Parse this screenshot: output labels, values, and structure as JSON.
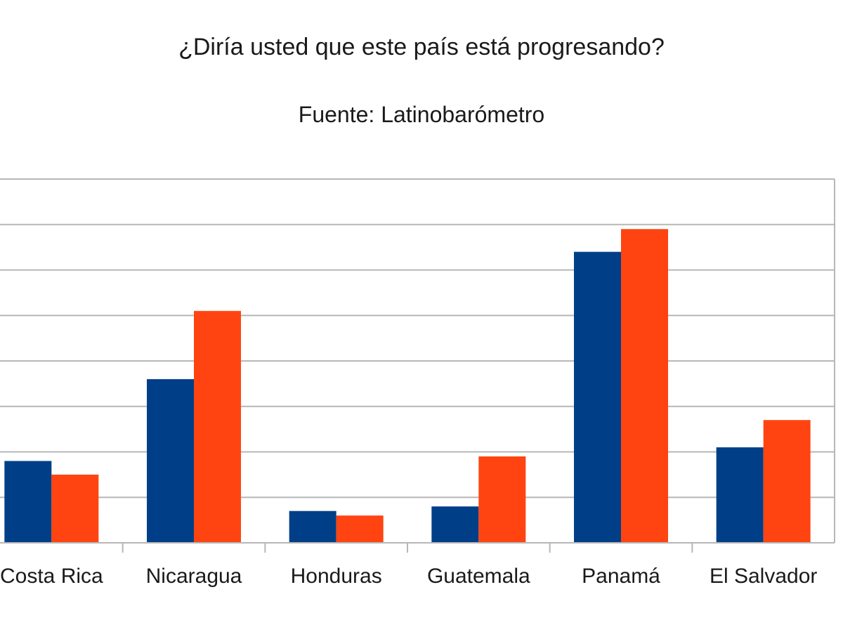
{
  "chart_data": {
    "type": "bar",
    "title": "¿Diría usted que este país está progresando?",
    "subtitle": "Fuente: Latinobarómetro",
    "categories": [
      "Costa Rica",
      "Nicaragua",
      "Honduras",
      "Guatemala",
      "Panamá",
      "El Salvador"
    ],
    "series": [
      {
        "values": [
          18,
          36,
          7,
          8,
          64,
          21
        ]
      },
      {
        "values": [
          15,
          51,
          6,
          19,
          69,
          27
        ]
      }
    ],
    "ylim": [
      0,
      80
    ],
    "grid": true,
    "xlabel": "",
    "ylabel": ""
  },
  "colors": {
    "series_1": "#003f87",
    "series_2": "#ff4411",
    "grid": "#b7b7b7",
    "axis": "#b7b7b7"
  }
}
